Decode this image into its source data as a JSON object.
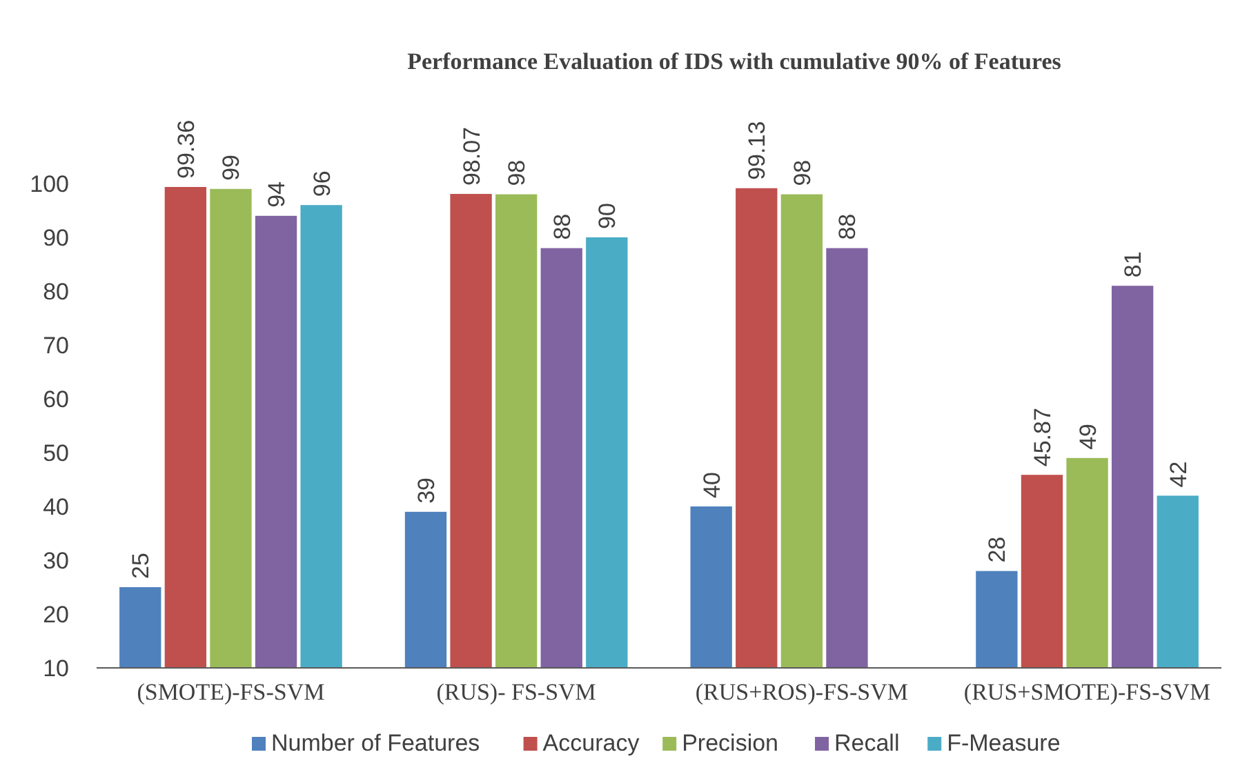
{
  "chart_data": {
    "type": "bar",
    "title": "Performance Evaluation of IDS with  cumulative 90% of Features",
    "categories": [
      "(SMOTE)-FS-SVM",
      "(RUS)- FS-SVM",
      "(RUS+ROS)-FS-SVM",
      "(RUS+SMOTE)-FS-SVM"
    ],
    "series": [
      {
        "name": "Number of Features",
        "color": "#4f81bd",
        "values": [
          25,
          39,
          40,
          28
        ],
        "value_labels": [
          "25",
          "39",
          "40",
          "28"
        ]
      },
      {
        "name": "Accuracy",
        "color": "#c0504d",
        "values": [
          99.36,
          98.07,
          99.13,
          45.87
        ],
        "value_labels": [
          "99.36",
          "98.07",
          "99.13",
          "45.87"
        ]
      },
      {
        "name": "Precision",
        "color": "#9bbb59",
        "values": [
          99,
          98,
          98,
          49
        ],
        "value_labels": [
          "99",
          "98",
          "98",
          "49"
        ]
      },
      {
        "name": "Recall",
        "color": "#8064a2",
        "values": [
          94,
          88,
          88,
          81
        ],
        "value_labels": [
          "94",
          "88",
          "88",
          "81"
        ]
      },
      {
        "name": "F-Measure",
        "color": "#4bacc6",
        "values": [
          96,
          90,
          null,
          42
        ],
        "value_labels": [
          "96",
          "90",
          null,
          "42"
        ]
      }
    ],
    "ylim": [
      10,
      100
    ],
    "yticks": [
      10,
      20,
      30,
      40,
      50,
      60,
      70,
      80,
      90,
      100
    ],
    "grid": false,
    "legend": "bottom"
  }
}
